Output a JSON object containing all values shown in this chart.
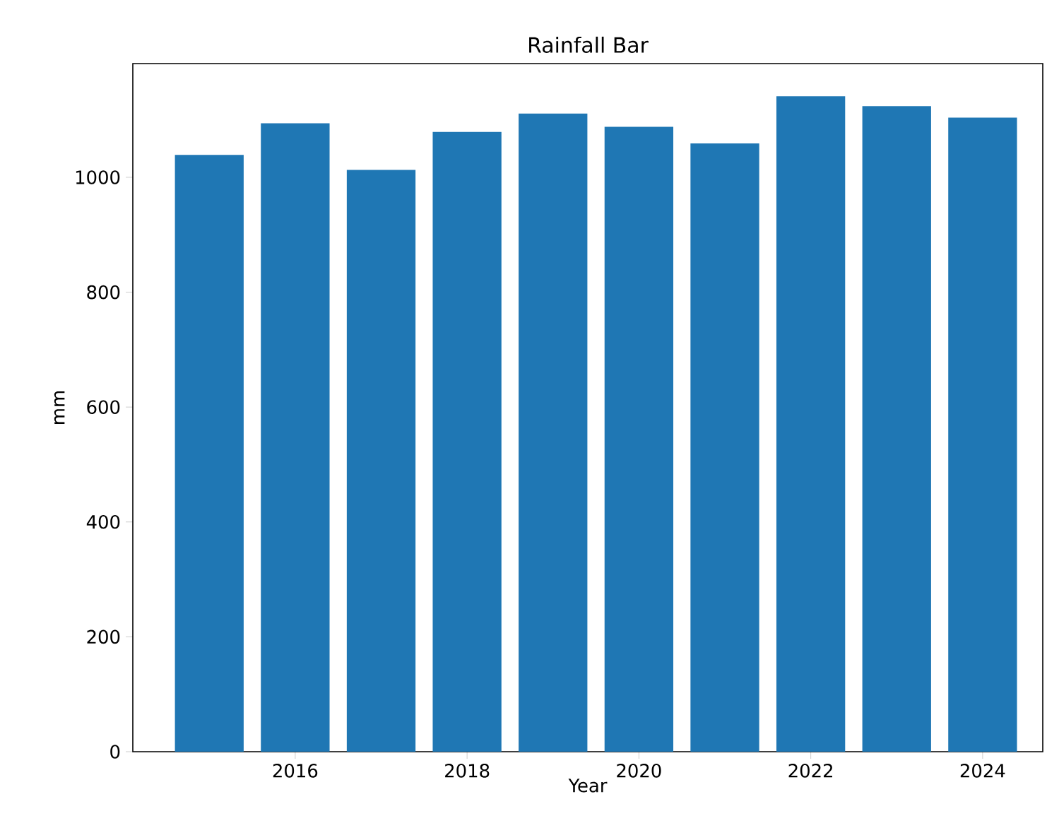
{
  "chart_data": {
    "type": "bar",
    "title": "Rainfall Bar",
    "xlabel": "Year",
    "ylabel": "mm",
    "x": [
      2015,
      2016,
      2017,
      2018,
      2019,
      2020,
      2021,
      2022,
      2023,
      2024
    ],
    "values": [
      1039,
      1094,
      1013,
      1079,
      1111,
      1088,
      1059,
      1141,
      1124,
      1104
    ],
    "color": "#1f77b4",
    "xlim": [
      2014.11,
      2024.7
    ],
    "ylim": [
      0,
      1198
    ],
    "xticks": [
      2016,
      2018,
      2020,
      2022,
      2024
    ],
    "yticks": [
      0,
      200,
      400,
      600,
      800,
      1000
    ]
  }
}
